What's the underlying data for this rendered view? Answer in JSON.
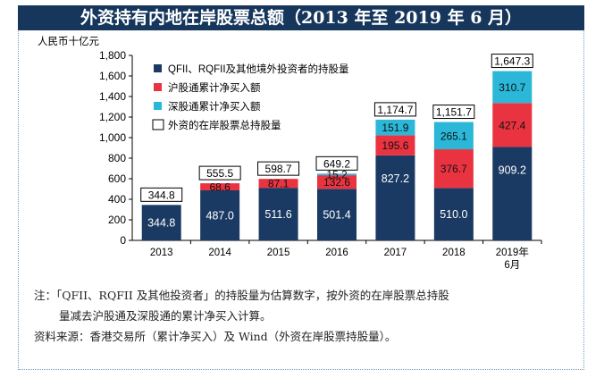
{
  "title": "外资持有内地在岸股票总额（2013 年至 2019 年 6 月）",
  "chart_data": {
    "type": "bar",
    "stacked": true,
    "ylabel": "人民币十亿元",
    "ylim": [
      0,
      1800
    ],
    "yticks": [
      "0",
      "200",
      "400",
      "600",
      "800",
      "1,000",
      "1,200",
      "1,400",
      "1,600",
      "1,800"
    ],
    "categories": [
      "2013",
      "2014",
      "2015",
      "2016",
      "2017",
      "2018",
      "2019年6月"
    ],
    "series": [
      {
        "name": "QFII、RQFII及其他境外投资者的持股量",
        "color": "#1b3a63",
        "values": [
          344.8,
          487.0,
          511.6,
          501.4,
          827.2,
          510.0,
          909.2
        ],
        "labels": [
          "344.8",
          "487.0",
          "511.6",
          "501.4",
          "827.2",
          "510.0",
          "909.2"
        ]
      },
      {
        "name": "沪股通累计净买入额",
        "color": "#ea3340",
        "values": [
          0,
          68.6,
          87.1,
          132.6,
          195.6,
          376.7,
          427.4
        ],
        "labels": [
          "",
          "68.6",
          "87.1",
          "132.6",
          "195.6",
          "376.7",
          "427.4"
        ]
      },
      {
        "name": "深股通累计净买入额",
        "color": "#2bb7d8",
        "values": [
          0,
          0,
          0,
          15.2,
          151.9,
          265.1,
          310.7
        ],
        "labels": [
          "",
          "",
          "",
          "15.2",
          "151.9",
          "265.1",
          "310.7"
        ]
      }
    ],
    "totals": {
      "name": "外资的在岸股票总持股量",
      "labels": [
        "344.8",
        "555.5",
        "598.7",
        "649.2",
        "1,174.7",
        "1,151.7",
        "1,647.3"
      ]
    },
    "grid": false,
    "legend_position": "top-left"
  },
  "notes": {
    "line1": "注：「QFII、RQFII 及其他投资者」的持股量为估算数字，按外资的在岸股票总持股",
    "line2": "量减去沪股通及深股通的累计净买入计算。",
    "line3": "资料来源：香港交易所（累计净买入）及 Wind（外资在岸股票持股量）。"
  }
}
